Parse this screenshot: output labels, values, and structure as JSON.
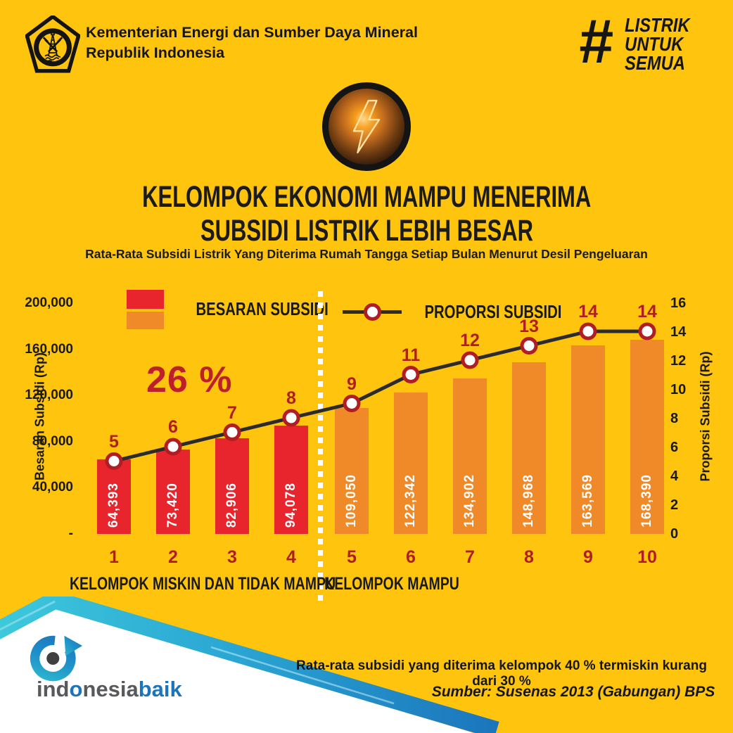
{
  "page": {
    "background": "#FFC40D"
  },
  "header": {
    "ministry_line1": "Kementerian Energi dan Sumber Daya Mineral",
    "ministry_line2": "Republik Indonesia",
    "hashtag": "#",
    "campaign_line1": "LISTRIK",
    "campaign_line2": "UNTUK",
    "campaign_line3": "SEMUA"
  },
  "title": {
    "line1": "KELOMPOK EKONOMI MAMPU MENERIMA",
    "line2": "SUBSIDI LISTRIK LEBIH BESAR",
    "subtitle": "Rata-Rata Subsidi Listrik Yang Diterima Rumah Tangga Setiap Bulan Menurut Desil Pengeluaran"
  },
  "chart_data": {
    "type": "bar+line",
    "categories": [
      "1",
      "2",
      "3",
      "4",
      "5",
      "6",
      "7",
      "8",
      "9",
      "10"
    ],
    "series": [
      {
        "name": "BESARAN SUBSIDI",
        "type": "bar",
        "values": [
          64393,
          73420,
          82906,
          94078,
          109050,
          122342,
          134902,
          148968,
          163569,
          168390
        ],
        "labels": [
          "64,393",
          "73,420",
          "82,906",
          "94,078",
          "109,050",
          "122,342",
          "134,902",
          "148,968",
          "163,569",
          "168,390"
        ],
        "bar_colors": [
          "#E8242C",
          "#E8242C",
          "#E8242C",
          "#E8242C",
          "#F08A28",
          "#F08A28",
          "#F08A28",
          "#F08A28",
          "#F08A28",
          "#F08A28"
        ]
      },
      {
        "name": "PROPORSI SUBSIDI",
        "type": "line",
        "values": [
          5,
          6,
          7,
          8,
          9,
          11,
          12,
          13,
          14,
          14
        ],
        "line_color": "#2B2B2B",
        "marker_fill": "#FFFFFF",
        "marker_stroke": "#B01E24",
        "label_color": "#B01E24"
      }
    ],
    "y_left": {
      "label": "Besaran Subsidi (Rp)",
      "ticks": [
        "200,000",
        "160,000",
        "120,000",
        "80,000",
        "40,000",
        "-"
      ],
      "range": [
        0,
        200000
      ]
    },
    "y_right": {
      "label": "Proporsi Subsidi (Rp)",
      "ticks": [
        "16",
        "14",
        "12",
        "10",
        "8",
        "6",
        "4",
        "2",
        "0"
      ],
      "range": [
        0,
        16
      ]
    },
    "annotation": "26 %",
    "legend": [
      "BESARAN SUBSIDI",
      "PROPORSI SUBSIDI"
    ],
    "legend_colors": {
      "bar_top": "#E8242C",
      "bar_bottom": "#F08A28"
    },
    "groups": [
      {
        "label": "KELOMPOK MISKIN DAN TIDAK MAMPU",
        "categories": [
          "1",
          "2",
          "3",
          "4"
        ]
      },
      {
        "label": "KELOMPOK MAMPU",
        "categories": [
          "5",
          "6",
          "7",
          "8",
          "9",
          "10"
        ]
      }
    ],
    "grid": false,
    "legend_position": "top"
  },
  "footer": {
    "brand_segments": [
      {
        "text": "ind",
        "color": "#58595B"
      },
      {
        "text": "o",
        "color": "#1B75BC"
      },
      {
        "text": "nesia",
        "color": "#58595B"
      },
      {
        "text": "baik",
        "color": "#1B75BC"
      }
    ],
    "note": "Rata-rata subsidi yang diterima kelompok 40 % termiskin kurang dari 30 %",
    "source": "Sumber: Susenas 2013 (Gabungan) BPS"
  }
}
